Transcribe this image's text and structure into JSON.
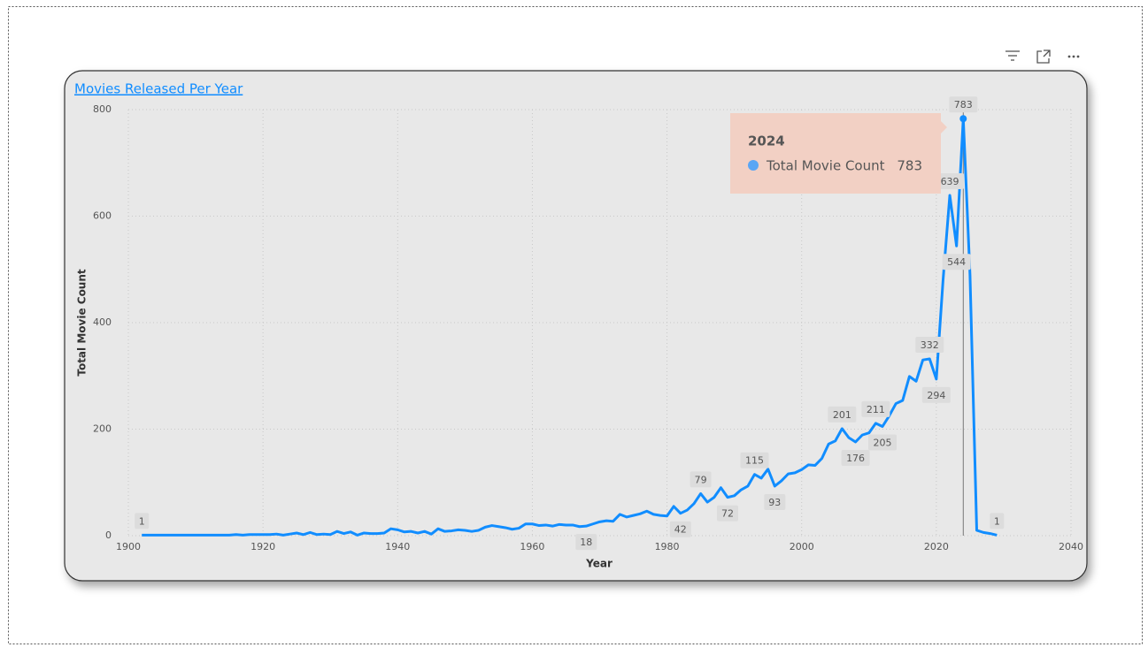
{
  "chart_data": {
    "type": "line",
    "title": "Movies Released Per Year",
    "x_label": "Year",
    "y_label": "Total Movie Count",
    "x": [
      1902,
      1903,
      1904,
      1905,
      1906,
      1907,
      1908,
      1909,
      1910,
      1911,
      1912,
      1913,
      1914,
      1915,
      1916,
      1917,
      1918,
      1919,
      1920,
      1921,
      1922,
      1923,
      1924,
      1925,
      1926,
      1927,
      1928,
      1929,
      1930,
      1931,
      1932,
      1933,
      1934,
      1935,
      1936,
      1937,
      1938,
      1939,
      1940,
      1941,
      1942,
      1943,
      1944,
      1945,
      1946,
      1947,
      1948,
      1949,
      1950,
      1951,
      1952,
      1953,
      1954,
      1955,
      1956,
      1957,
      1958,
      1959,
      1960,
      1961,
      1962,
      1963,
      1964,
      1965,
      1966,
      1967,
      1968,
      1969,
      1970,
      1971,
      1972,
      1973,
      1974,
      1975,
      1976,
      1977,
      1978,
      1979,
      1980,
      1981,
      1982,
      1983,
      1984,
      1985,
      1986,
      1987,
      1988,
      1989,
      1990,
      1991,
      1992,
      1993,
      1994,
      1995,
      1996,
      1997,
      1998,
      1999,
      2000,
      2001,
      2002,
      2003,
      2004,
      2005,
      2006,
      2007,
      2008,
      2009,
      2010,
      2011,
      2012,
      2013,
      2014,
      2015,
      2016,
      2017,
      2018,
      2019,
      2020,
      2021,
      2022,
      2023,
      2024,
      2025,
      2026,
      2027,
      2028,
      2029
    ],
    "series": [
      {
        "name": "Total Movie Count",
        "color": "#118dff",
        "values": [
          1,
          1,
          1,
          1,
          1,
          1,
          1,
          1,
          1,
          1,
          1,
          1,
          1,
          1,
          2,
          1,
          2,
          2,
          2,
          2,
          3,
          1,
          3,
          5,
          2,
          6,
          2,
          3,
          2,
          8,
          4,
          7,
          1,
          5,
          4,
          4,
          5,
          13,
          11,
          7,
          8,
          5,
          8,
          3,
          13,
          8,
          9,
          11,
          10,
          8,
          10,
          16,
          19,
          17,
          15,
          12,
          14,
          22,
          22,
          19,
          20,
          18,
          21,
          20,
          20,
          17,
          18,
          22,
          26,
          28,
          27,
          40,
          35,
          38,
          41,
          46,
          40,
          38,
          37,
          55,
          42,
          48,
          60,
          79,
          63,
          72,
          90,
          72,
          75,
          86,
          93,
          115,
          108,
          125,
          93,
          103,
          116,
          118,
          124,
          133,
          132,
          145,
          172,
          178,
          201,
          184,
          176,
          189,
          193,
          211,
          205,
          225,
          248,
          254,
          299,
          290,
          330,
          332,
          294,
          480,
          639,
          544,
          783,
          490,
          10,
          6,
          4,
          1
        ],
        "value_labels": [
          "1",
          null,
          null,
          null,
          null,
          null,
          null,
          null,
          null,
          null,
          null,
          null,
          null,
          null,
          null,
          null,
          null,
          null,
          null,
          null,
          null,
          null,
          null,
          null,
          null,
          null,
          null,
          null,
          null,
          null,
          null,
          null,
          null,
          null,
          null,
          null,
          null,
          null,
          null,
          null,
          null,
          null,
          null,
          null,
          null,
          null,
          null,
          null,
          null,
          null,
          null,
          null,
          null,
          null,
          null,
          null,
          null,
          null,
          null,
          null,
          null,
          null,
          null,
          null,
          null,
          null,
          "18",
          null,
          null,
          null,
          null,
          null,
          null,
          null,
          null,
          null,
          null,
          null,
          null,
          null,
          "42",
          null,
          null,
          "79",
          null,
          null,
          null,
          "72",
          null,
          null,
          null,
          "115",
          null,
          null,
          "93",
          null,
          null,
          null,
          null,
          null,
          null,
          null,
          null,
          null,
          "201",
          null,
          "176",
          null,
          null,
          "211",
          "205",
          null,
          null,
          null,
          null,
          null,
          null,
          "332",
          "294",
          null,
          "639",
          "544",
          "783",
          null,
          null,
          null,
          null,
          "1"
        ]
      }
    ],
    "xlim": [
      1900,
      2040
    ],
    "xticks": [
      1900,
      1920,
      1940,
      1960,
      1980,
      2000,
      2020,
      2040
    ],
    "ylim": [
      0,
      800
    ],
    "yticks": [
      0,
      200,
      400,
      600,
      800
    ],
    "grid": true,
    "tooltip": {
      "x": 2024,
      "label": "Total Movie Count",
      "value": 783
    }
  }
}
